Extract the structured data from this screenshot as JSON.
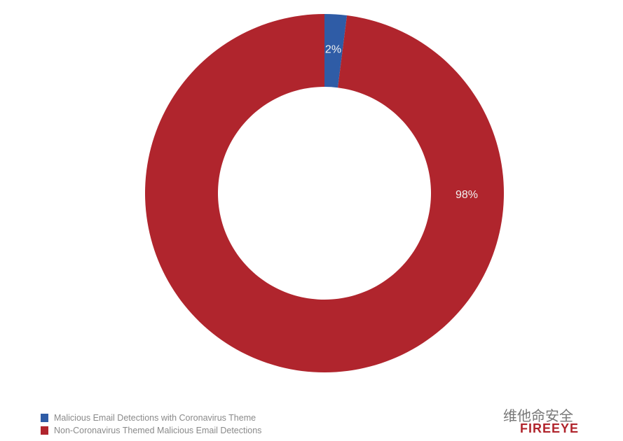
{
  "chart_data": {
    "type": "pie",
    "donut": true,
    "categories": [
      "Malicious Email Detections with Coronavirus Theme",
      "Non-Coronavirus Themed Malicious Email Detections"
    ],
    "values": [
      2,
      98
    ],
    "data_labels": [
      "2%",
      "98%"
    ],
    "colors": [
      "#2f5ca6",
      "#b0252d"
    ],
    "legend_position": "bottom-left"
  },
  "watermark": {
    "text": "维他命安全",
    "logo": "FIREEYE"
  }
}
